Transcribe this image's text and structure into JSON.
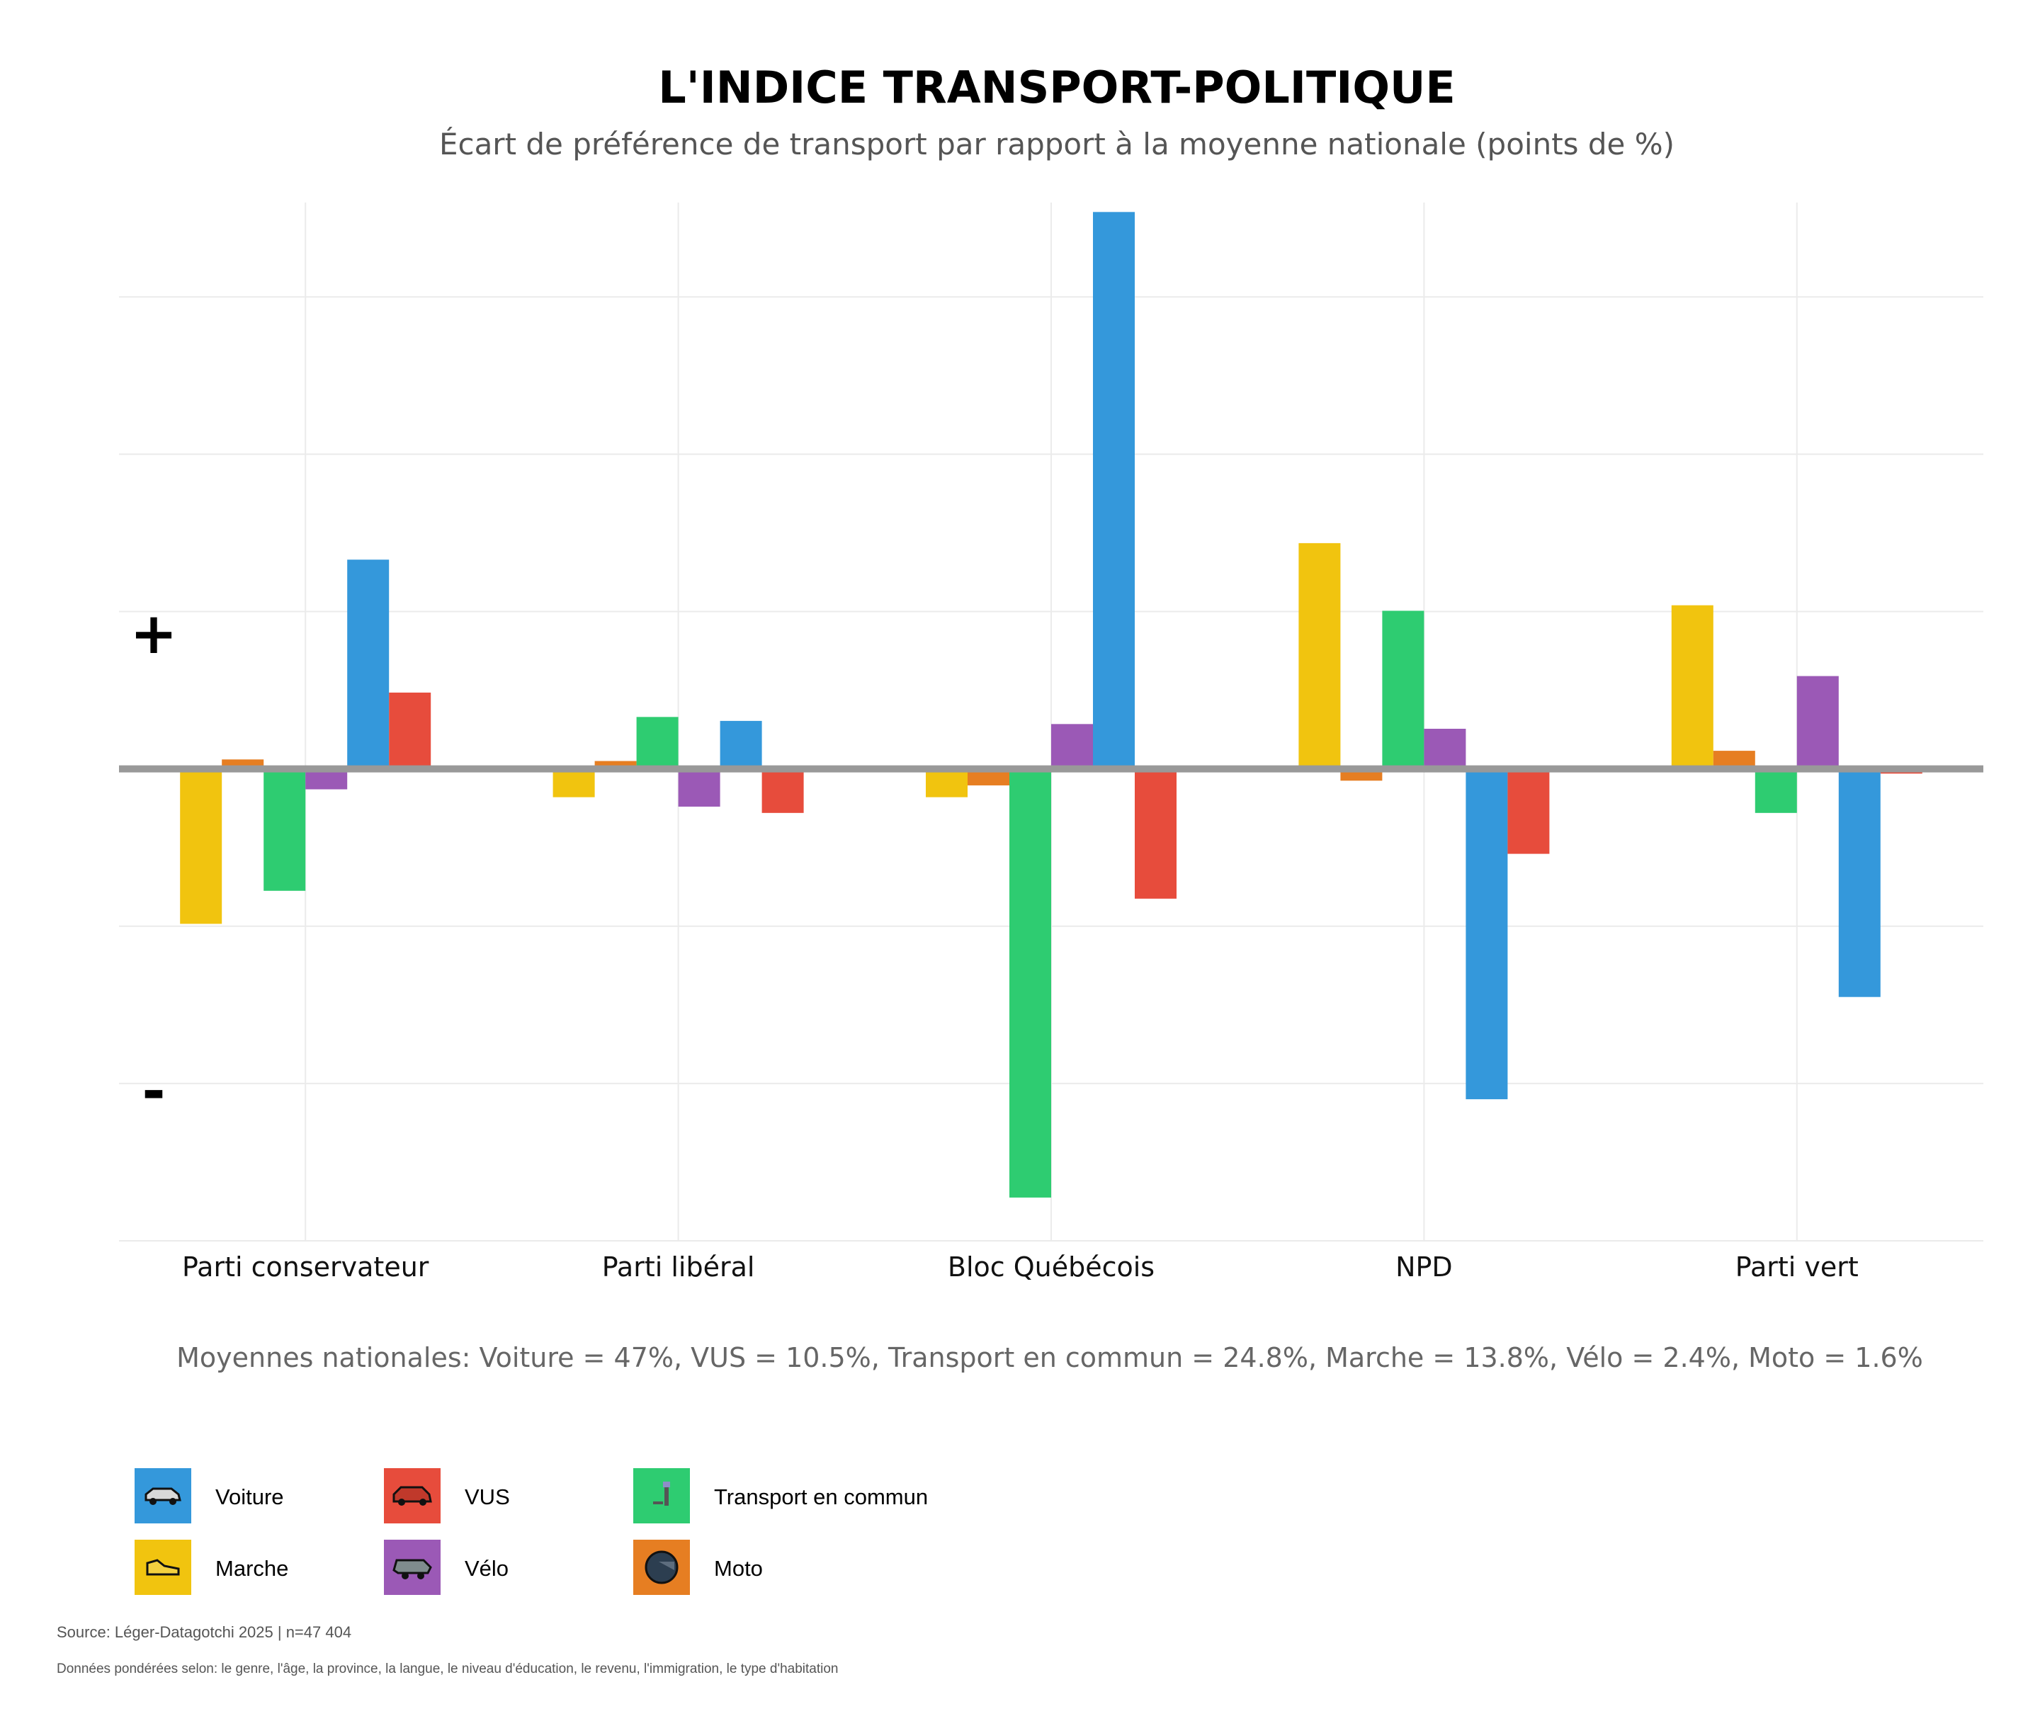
{
  "title": "L'INDICE TRANSPORT-POLITIQUE",
  "subtitle": "Écart de préférence de transport par rapport à la moyenne nationale (points de %)",
  "axis_signs": {
    "plus": "+",
    "minus": "-"
  },
  "national_averages_note": "Moyennes nationales: Voiture = 47%, VUS = 10.5%, Transport en commun = 24.8%, Marche = 13.8%, Vélo = 2.4%, Moto = 1.6%",
  "source": "Source: Léger-Datagotchi 2025 | n=47 404",
  "weights_note": "Données pondérées selon: le genre, l'âge, la province, la langue, le niveau d'éducation, le revenu, l'immigration, le type d'habitation",
  "legend": [
    {
      "label": "Voiture",
      "color": "#3498DB",
      "icon": "car-icon"
    },
    {
      "label": "VUS",
      "color": "#E74C3C",
      "icon": "suv-icon"
    },
    {
      "label": "Transport en commun",
      "color": "#2ECC71",
      "icon": "bus-stop-icon"
    },
    {
      "label": "Marche",
      "color": "#F1C40F",
      "icon": "shoe-icon"
    },
    {
      "label": "Vélo",
      "color": "#9B59B6",
      "icon": "bike-icon"
    },
    {
      "label": "Moto",
      "color": "#E67E22",
      "icon": "helmet-icon"
    }
  ],
  "chart_data": {
    "type": "bar",
    "title": "L'INDICE TRANSPORT-POLITIQUE",
    "subtitle": "Écart de préférence de transport par rapport à la moyenne nationale (points de %)",
    "categories": [
      "Parti conservateur",
      "Parti libéral",
      "Bloc Québécois",
      "NPD",
      "Parti vert"
    ],
    "ylim": [
      -6.0,
      7.2
    ],
    "grid": true,
    "series": [
      {
        "name": "Marche",
        "color": "#F1C40F",
        "values": [
          -1.97,
          -0.36,
          -0.36,
          2.87,
          2.08
        ]
      },
      {
        "name": "Moto",
        "color": "#E67E22",
        "values": [
          0.12,
          0.1,
          -0.21,
          -0.15,
          0.23
        ]
      },
      {
        "name": "Transport en commun",
        "color": "#2ECC71",
        "values": [
          -1.55,
          0.66,
          -5.45,
          2.01,
          -0.56
        ]
      },
      {
        "name": "Vélo",
        "color": "#9B59B6",
        "values": [
          -0.26,
          -0.48,
          0.57,
          0.51,
          1.18
        ]
      },
      {
        "name": "Voiture",
        "color": "#3498DB",
        "values": [
          2.66,
          0.61,
          7.08,
          -4.2,
          -2.9
        ]
      },
      {
        "name": "VUS",
        "color": "#E74C3C",
        "values": [
          0.97,
          -0.56,
          -1.65,
          -1.08,
          -0.06
        ]
      }
    ]
  }
}
